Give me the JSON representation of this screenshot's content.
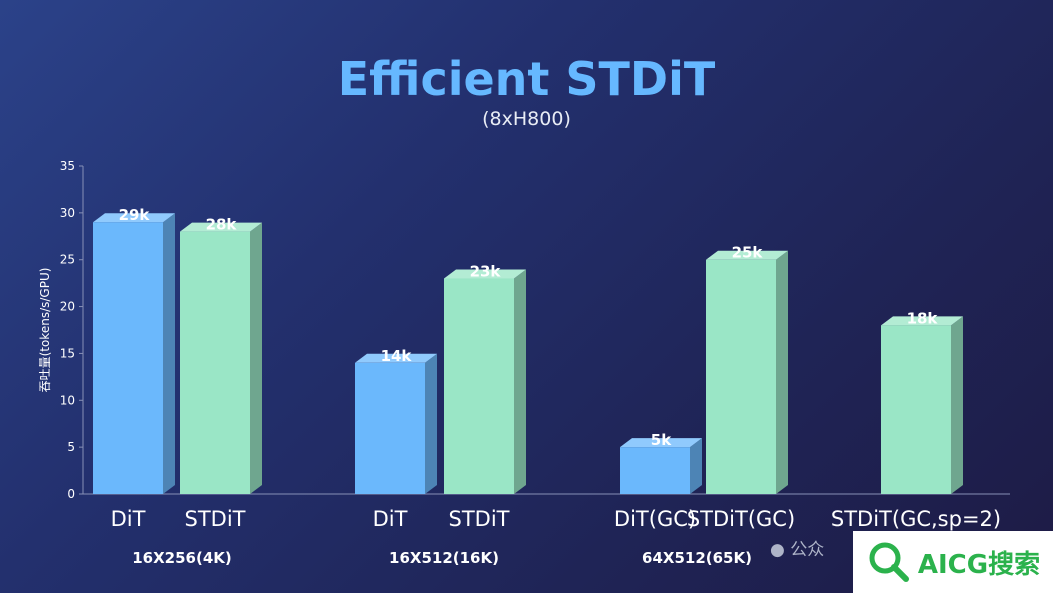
{
  "header": {
    "title": "Efficient STDiT",
    "subtitle": "(8xH800)"
  },
  "watermark": {
    "brand": "AICG搜索",
    "wechat_prefix": "公众",
    "brand_color": "#2bb24c"
  },
  "colors": {
    "dit": "#6bb8fc",
    "stdit": "#9ae6c6",
    "title": "#66b8ff"
  },
  "chart_data": {
    "type": "bar",
    "title": "Efficient STDiT",
    "subtitle": "(8xH800)",
    "ylabel": "吞吐量(tokens/s/GPU)",
    "xlabel": "",
    "ylim": [
      0,
      35
    ],
    "yticks": [
      0,
      5,
      10,
      15,
      20,
      25,
      30,
      35
    ],
    "grid": false,
    "groups": [
      {
        "label": "16X256(4K)",
        "bars": [
          {
            "name": "DiT",
            "value": 29,
            "label": "29k",
            "color": "#6bb8fc"
          },
          {
            "name": "STDiT",
            "value": 28,
            "label": "28k",
            "color": "#9ae6c6"
          }
        ]
      },
      {
        "label": "16X512(16K)",
        "bars": [
          {
            "name": "DiT",
            "value": 14,
            "label": "14k",
            "color": "#6bb8fc"
          },
          {
            "name": "STDiT",
            "value": 23,
            "label": "23k",
            "color": "#9ae6c6"
          }
        ]
      },
      {
        "label": "64X512(65K)",
        "bars": [
          {
            "name": "DiT(GC)",
            "value": 5,
            "label": "5k",
            "color": "#6bb8fc"
          },
          {
            "name": "STDiT(GC)",
            "value": 25,
            "label": "25k",
            "color": "#9ae6c6"
          },
          {
            "name": "STDiT(GC,sp=2)",
            "value": 18,
            "label": "18k",
            "color": "#9ae6c6"
          }
        ]
      }
    ]
  }
}
